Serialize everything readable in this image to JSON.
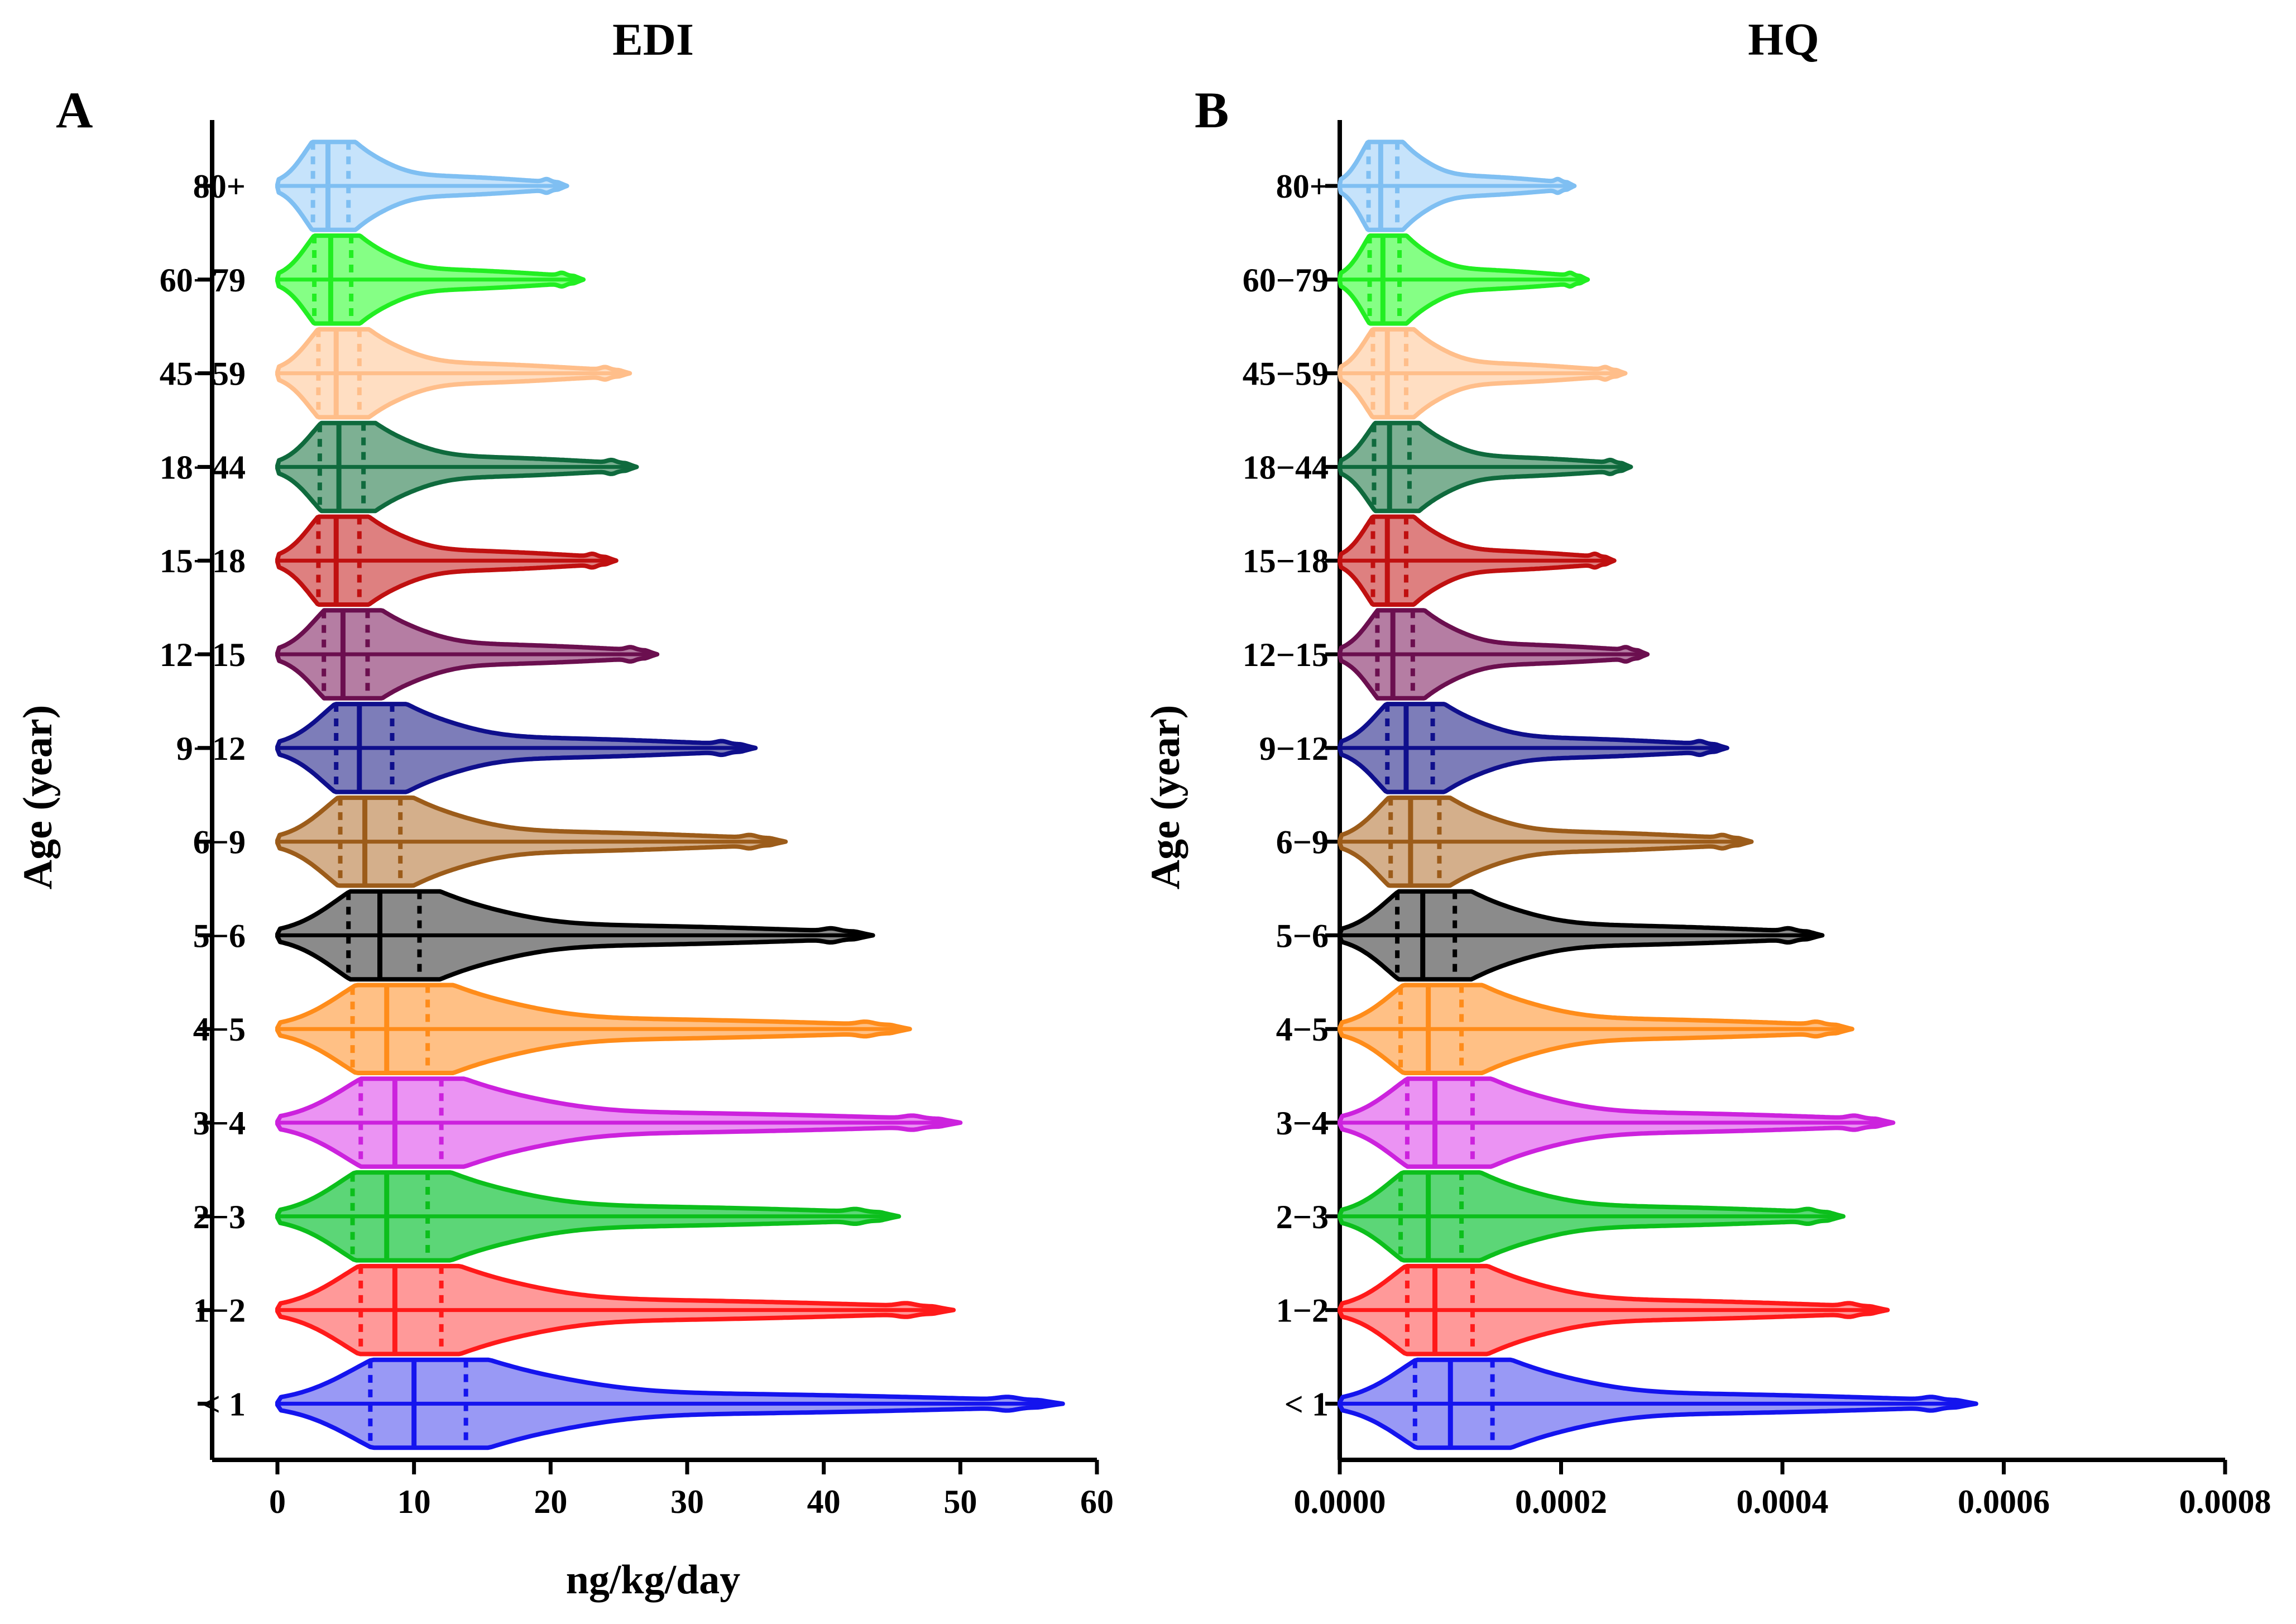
{
  "figure": "Violin plots of estimated daily intake and hazard quotient by age group",
  "chart_data": [
    {
      "panel": "A",
      "type": "violin",
      "orientation": "horizontal",
      "title": "EDI",
      "xlabel": "ng/kg/day",
      "ylabel": "Age (year)",
      "xlim": [
        -5,
        60
      ],
      "xticks": [
        0,
        10,
        20,
        30,
        40,
        50,
        60
      ],
      "xtick_labels": [
        "0",
        "10",
        "20",
        "30",
        "40",
        "50",
        "60"
      ],
      "categories": [
        "< 1",
        "1−2",
        "2−3",
        "3−4",
        "4−5",
        "5−6",
        "6−9",
        "9−12",
        "12−15",
        "15−18",
        "18−44",
        "45−59",
        "60−79",
        "80+"
      ],
      "series": [
        {
          "name": "< 1",
          "color": "#1414ee",
          "fill": "#8080f2",
          "q1": 6.8,
          "median": 10.0,
          "q3": 13.8,
          "mode": 9.5,
          "max": 57.5
        },
        {
          "name": "1−2",
          "color": "#ff1a1a",
          "fill": "#ff8080",
          "q1": 6.1,
          "median": 8.6,
          "q3": 12.0,
          "mode": 8.2,
          "max": 49.5
        },
        {
          "name": "2−3",
          "color": "#0cbf1c",
          "fill": "#33cc55",
          "q1": 5.5,
          "median": 8.0,
          "q3": 11.0,
          "mode": 7.8,
          "max": 45.5
        },
        {
          "name": "3−4",
          "color": "#cc22dd",
          "fill": "#e678f0",
          "q1": 6.1,
          "median": 8.6,
          "q3": 12.0,
          "mode": 8.4,
          "max": 50.0
        },
        {
          "name": "4−5",
          "color": "#ff8c1a",
          "fill": "#ffb066",
          "q1": 5.5,
          "median": 8.0,
          "q3": 11.0,
          "mode": 7.9,
          "max": 46.3
        },
        {
          "name": "5−6",
          "color": "#000000",
          "fill": "#6e6e6e",
          "q1": 5.2,
          "median": 7.5,
          "q3": 10.4,
          "mode": 7.3,
          "max": 43.6
        },
        {
          "name": "6−9",
          "color": "#9c5c1a",
          "fill": "#c99b6e",
          "q1": 4.6,
          "median": 6.4,
          "q3": 9.0,
          "mode": 6.1,
          "max": 37.2
        },
        {
          "name": "9−12",
          "color": "#0f0f8c",
          "fill": "#5c5ca8",
          "q1": 4.3,
          "median": 6.0,
          "q3": 8.4,
          "mode": 5.8,
          "max": 35.0
        },
        {
          "name": "12−15",
          "color": "#6b0f4f",
          "fill": "#a35d8c",
          "q1": 3.4,
          "median": 4.8,
          "q3": 6.6,
          "mode": 4.7,
          "max": 27.8
        },
        {
          "name": "15−18",
          "color": "#c01010",
          "fill": "#d66060",
          "q1": 3.0,
          "median": 4.3,
          "q3": 6.0,
          "mode": 4.1,
          "max": 24.8
        },
        {
          "name": "18−44",
          "color": "#0f6a3d",
          "fill": "#5c9c78",
          "q1": 3.1,
          "median": 4.5,
          "q3": 6.3,
          "mode": 4.4,
          "max": 26.3
        },
        {
          "name": "45−59",
          "color": "#ffbe8a",
          "fill": "#ffd6b3",
          "q1": 3.0,
          "median": 4.3,
          "q3": 6.0,
          "mode": 4.1,
          "max": 25.8
        },
        {
          "name": "60−79",
          "color": "#22ee22",
          "fill": "#66ff66",
          "q1": 2.7,
          "median": 3.9,
          "q3": 5.4,
          "mode": 3.7,
          "max": 22.4
        },
        {
          "name": "80+",
          "color": "#7fbff2",
          "fill": "#b8dcfa",
          "q1": 2.6,
          "median": 3.7,
          "q3": 5.2,
          "mode": 3.5,
          "max": 21.2
        }
      ]
    },
    {
      "panel": "B",
      "type": "violin",
      "orientation": "horizontal",
      "title": "HQ",
      "xlabel": "",
      "ylabel": "Age (year)",
      "xlim": [
        0,
        0.0008
      ],
      "xticks": [
        0,
        0.0002,
        0.0004,
        0.0006,
        0.0008
      ],
      "xtick_labels": [
        "0.0000",
        "0.0002",
        "0.0004",
        "0.0006",
        "0.0008"
      ],
      "categories": [
        "< 1",
        "1−2",
        "2−3",
        "3−4",
        "4−5",
        "5−6",
        "6−9",
        "9−12",
        "12−15",
        "15−18",
        "18−44",
        "45−59",
        "60−79",
        "80+"
      ],
      "series": [
        {
          "name": "< 1",
          "color": "#1414ee",
          "fill": "#8080f2",
          "q1": 6.8e-05,
          "median": 0.0001,
          "q3": 0.000138,
          "mode": 9.5e-05,
          "max": 0.000575
        },
        {
          "name": "1−2",
          "color": "#ff1a1a",
          "fill": "#ff8080",
          "q1": 6.1e-05,
          "median": 8.6e-05,
          "q3": 0.00012,
          "mode": 8.2e-05,
          "max": 0.000495
        },
        {
          "name": "2−3",
          "color": "#0cbf1c",
          "fill": "#33cc55",
          "q1": 5.5e-05,
          "median": 8e-05,
          "q3": 0.00011,
          "mode": 7.8e-05,
          "max": 0.000455
        },
        {
          "name": "3−4",
          "color": "#cc22dd",
          "fill": "#e678f0",
          "q1": 6.1e-05,
          "median": 8.6e-05,
          "q3": 0.00012,
          "mode": 8.4e-05,
          "max": 0.0005
        },
        {
          "name": "4−5",
          "color": "#ff8c1a",
          "fill": "#ffb066",
          "q1": 5.5e-05,
          "median": 8e-05,
          "q3": 0.00011,
          "mode": 7.9e-05,
          "max": 0.000463
        },
        {
          "name": "5−6",
          "color": "#000000",
          "fill": "#6e6e6e",
          "q1": 5.2e-05,
          "median": 7.5e-05,
          "q3": 0.000104,
          "mode": 7.3e-05,
          "max": 0.000436
        },
        {
          "name": "6−9",
          "color": "#9c5c1a",
          "fill": "#c99b6e",
          "q1": 4.6e-05,
          "median": 6.4e-05,
          "q3": 9e-05,
          "mode": 6.1e-05,
          "max": 0.000372
        },
        {
          "name": "9−12",
          "color": "#0f0f8c",
          "fill": "#5c5ca8",
          "q1": 4.3e-05,
          "median": 6e-05,
          "q3": 8.4e-05,
          "mode": 5.8e-05,
          "max": 0.00035
        },
        {
          "name": "12−15",
          "color": "#6b0f4f",
          "fill": "#a35d8c",
          "q1": 3.4e-05,
          "median": 4.8e-05,
          "q3": 6.6e-05,
          "mode": 4.7e-05,
          "max": 0.000278
        },
        {
          "name": "15−18",
          "color": "#c01010",
          "fill": "#d66060",
          "q1": 3e-05,
          "median": 4.3e-05,
          "q3": 6e-05,
          "mode": 4.1e-05,
          "max": 0.000248
        },
        {
          "name": "18−44",
          "color": "#0f6a3d",
          "fill": "#5c9c78",
          "q1": 3.1e-05,
          "median": 4.5e-05,
          "q3": 6.3e-05,
          "mode": 4.4e-05,
          "max": 0.000263
        },
        {
          "name": "45−59",
          "color": "#ffbe8a",
          "fill": "#ffd6b3",
          "q1": 3e-05,
          "median": 4.3e-05,
          "q3": 6e-05,
          "mode": 4.1e-05,
          "max": 0.000258
        },
        {
          "name": "60−79",
          "color": "#22ee22",
          "fill": "#66ff66",
          "q1": 2.7e-05,
          "median": 3.9e-05,
          "q3": 5.4e-05,
          "mode": 3.7e-05,
          "max": 0.000224
        },
        {
          "name": "80+",
          "color": "#7fbff2",
          "fill": "#b8dcfa",
          "q1": 2.6e-05,
          "median": 3.7e-05,
          "q3": 5.2e-05,
          "mode": 3.5e-05,
          "max": 0.000212
        }
      ]
    }
  ]
}
